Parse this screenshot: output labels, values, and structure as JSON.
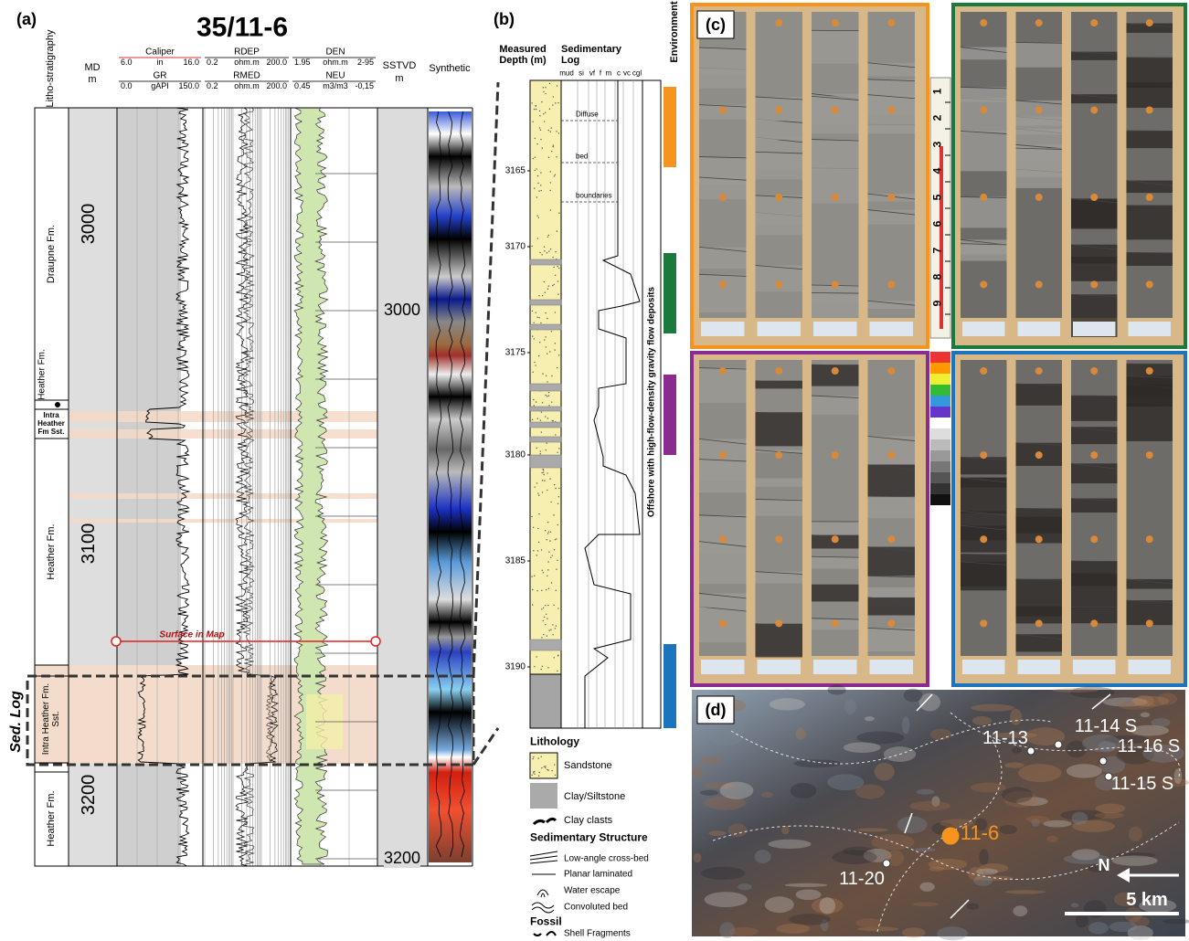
{
  "panel_a": {
    "label": "(a)",
    "title": "35/11-6",
    "lithostratigraphy_header": "Litho-stratigraphy",
    "md_header": "MD",
    "md_unit": "m",
    "tracks": [
      {
        "name": "Caliper",
        "min": "6.0",
        "unit": "in",
        "max": "16.0"
      },
      {
        "name": "GR",
        "min": "0.0",
        "unit": "gAPI",
        "max": "150.0"
      },
      {
        "name": "RDEP",
        "min": "0.2",
        "unit": "ohm.m",
        "max": "200.0"
      },
      {
        "name": "RMED",
        "min": "0.2",
        "unit": "ohm.m",
        "max": "200.0"
      },
      {
        "name": "DEN",
        "min": "1.95",
        "unit": "ohm.m",
        "max": "2-95"
      },
      {
        "name": "NEU",
        "min": "0.45",
        "unit": "m3/m3",
        "max": "-0,15"
      }
    ],
    "sstvd_header": "SSTVD",
    "sstvd_unit": "m",
    "synthetic_header": "Synthetic",
    "md_depths": [
      "3000",
      "3100",
      "3200"
    ],
    "sstvd_depths": [
      "3000",
      "3200"
    ],
    "formations": [
      "Draupne Fm.",
      "Heather Fm.",
      "Intra Heather Fm Sst.",
      "Heather Fm.",
      "Intra Heather Fm. Sst.",
      "Heather Fm."
    ],
    "surface_label": "Surface in Map",
    "sed_log_label": "Sed. Log"
  },
  "panel_b": {
    "label": "(b)",
    "depth_header": "Measured Depth (m)",
    "log_header": "Sedimentary Log",
    "grain_sizes": [
      "mud",
      "si",
      "vf",
      "f",
      "m",
      "c",
      "vc",
      "cgl"
    ],
    "environment_header": "Environment",
    "depths": [
      "3165",
      "3170",
      "3175",
      "3180",
      "3185",
      "3190"
    ],
    "annotations": [
      "Diffuse",
      "bed",
      "boundaries"
    ],
    "environment": "Offshore with high-flow-density gravity flow deposits",
    "legend": {
      "lithology_title": "Lithology",
      "lithologies": [
        "Sandstone",
        "Clay/Siltstone",
        "Clay clasts"
      ],
      "structure_title": "Sedimentary Structure",
      "structures": [
        "Low-angle cross-bed",
        "Planar laminated",
        "Water escape",
        "Convoluted bed"
      ],
      "fossil_title": "Fossil",
      "fossils": [
        "Shell Fragments"
      ]
    }
  },
  "panel_c": {
    "label": "(c)",
    "ruler": [
      "1",
      "2",
      "3",
      "4",
      "5",
      "6",
      "7",
      "8",
      "9"
    ]
  },
  "panel_d": {
    "label": "(d)",
    "wells": [
      "11-13",
      "11-14 S",
      "11-16 S",
      "11-15 S",
      "11-6",
      "11-20"
    ],
    "north": "N",
    "scale": "5 km"
  }
}
